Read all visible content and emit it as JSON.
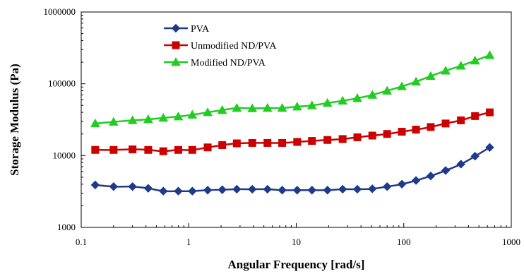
{
  "chart_data": {
    "type": "line",
    "title": "",
    "xlabel": "Angular  Frequency  [rad/s]",
    "ylabel": "Storage Modulus (Pa)",
    "xscale": "log",
    "yscale": "log",
    "xlim": [
      0.1,
      1000
    ],
    "ylim": [
      1000,
      1000000
    ],
    "grid": false,
    "legend_position": "top-left",
    "x_tick_labels": [
      "0.1",
      "1",
      "10",
      "100",
      "1000"
    ],
    "x_tick_values": [
      0.1,
      1,
      10,
      100,
      1000
    ],
    "y_tick_labels": [
      "1000",
      "10000",
      "100000",
      "1000000"
    ],
    "y_tick_values": [
      1000,
      10000,
      100000,
      1000000
    ],
    "x": [
      0.135,
      0.2,
      0.3,
      0.42,
      0.58,
      0.8,
      1.08,
      1.5,
      2.05,
      2.8,
      3.9,
      5.4,
      7.4,
      10.2,
      14,
      19.5,
      27,
      37,
      51,
      70,
      96,
      130,
      178,
      245,
      340,
      460,
      630
    ],
    "series": [
      {
        "name": "PVA",
        "color": "#1f3a8a",
        "marker": "diamond",
        "values": [
          3900,
          3700,
          3700,
          3500,
          3200,
          3200,
          3200,
          3300,
          3350,
          3400,
          3400,
          3400,
          3300,
          3300,
          3300,
          3300,
          3400,
          3400,
          3450,
          3700,
          4000,
          4500,
          5200,
          6200,
          7600,
          9800,
          13000
        ]
      },
      {
        "name": "Unmodified ND/PVA",
        "color": "#cc0000",
        "marker": "square",
        "values": [
          12000,
          12000,
          12200,
          12000,
          11500,
          12000,
          12000,
          13000,
          14000,
          14800,
          15000,
          15000,
          15000,
          15500,
          16000,
          16500,
          17000,
          18000,
          19000,
          20000,
          21500,
          23000,
          25000,
          28000,
          31000,
          35500,
          40000
        ]
      },
      {
        "name": "Modified ND/PVA",
        "color": "#22cc22",
        "marker": "triangle",
        "values": [
          28000,
          29500,
          31000,
          32000,
          33500,
          35000,
          37000,
          40000,
          43000,
          46000,
          45500,
          46000,
          46000,
          48000,
          50000,
          54000,
          58000,
          63000,
          70000,
          80000,
          92000,
          107000,
          128000,
          152000,
          178000,
          210000,
          250000
        ]
      }
    ]
  }
}
